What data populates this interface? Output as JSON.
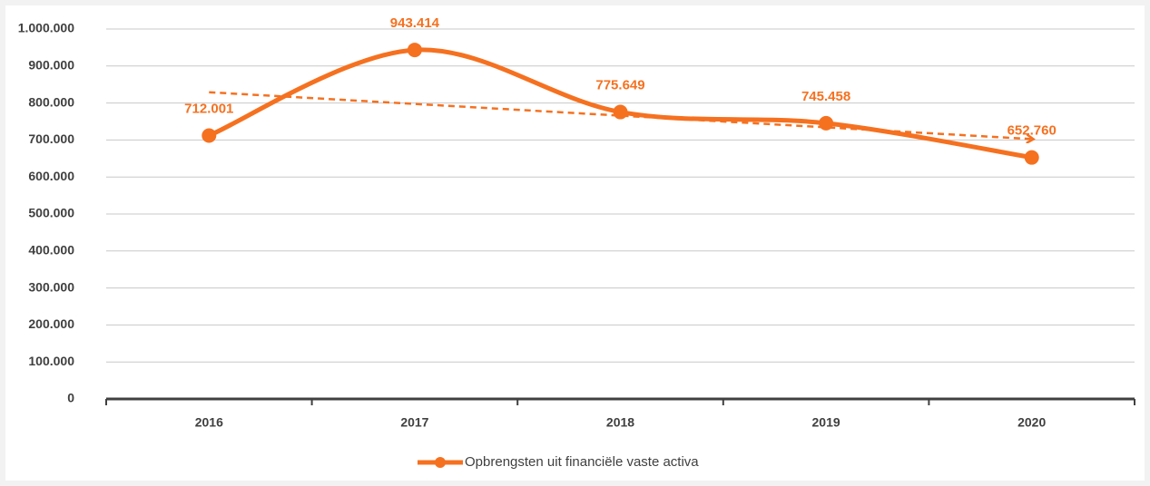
{
  "chart_data": {
    "type": "line",
    "categories": [
      "2016",
      "2017",
      "2018",
      "2019",
      "2020"
    ],
    "series": [
      {
        "name": "Opbrengsten uit financiële vaste activa",
        "color": "#f57120",
        "values": [
          712001,
          943414,
          775649,
          745458,
          652760
        ],
        "value_labels": [
          "712.001",
          "943.414",
          "775.649",
          "745.458",
          "652.760"
        ]
      }
    ],
    "ylim": [
      0,
      1000000
    ],
    "yticks": [
      0,
      {
        "value": 100000,
        "label": "100.000"
      },
      {
        "value": 200000,
        "label": "200.000"
      },
      {
        "value": 300000,
        "label": "300.000"
      },
      {
        "value": 400000,
        "label": "400.000"
      },
      {
        "value": 500000,
        "label": "500.000"
      },
      {
        "value": 600000,
        "label": "600.000"
      },
      {
        "value": 700000,
        "label": "700.000"
      },
      {
        "value": 800000,
        "label": "800.000"
      },
      {
        "value": 900000,
        "label": "900.000"
      },
      {
        "value": 1000000,
        "label": "1.000.000"
      }
    ],
    "grid": true,
    "trendline": true,
    "legend": "bottom"
  }
}
